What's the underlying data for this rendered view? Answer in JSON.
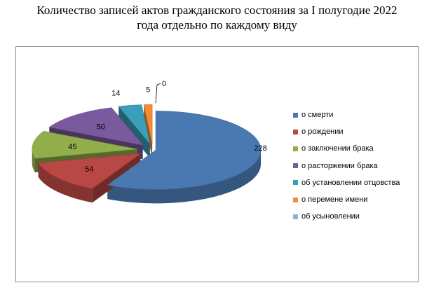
{
  "chart_data": {
    "type": "pie",
    "title_lines": [
      "Количество записей актов гражданского состояния за I полугодие 2022",
      "года отдельно по каждому виду"
    ],
    "categories": [
      "о смерти",
      "о рождении",
      "о заключении брака",
      "о расторжении брака",
      "об установлении отцовства",
      "о перемене имени",
      "об усыновлении"
    ],
    "values": [
      228,
      54,
      45,
      50,
      14,
      5,
      0
    ],
    "data_labels": [
      "228",
      "54",
      "45",
      "50",
      "14",
      "5",
      "0"
    ],
    "colors": [
      "#4a78b0",
      "#b94744",
      "#91ae4b",
      "#7a5a9e",
      "#3b9fb9",
      "#ef8c35",
      "#94b0da"
    ],
    "legend_position": "right",
    "style": "3d-exploded"
  }
}
